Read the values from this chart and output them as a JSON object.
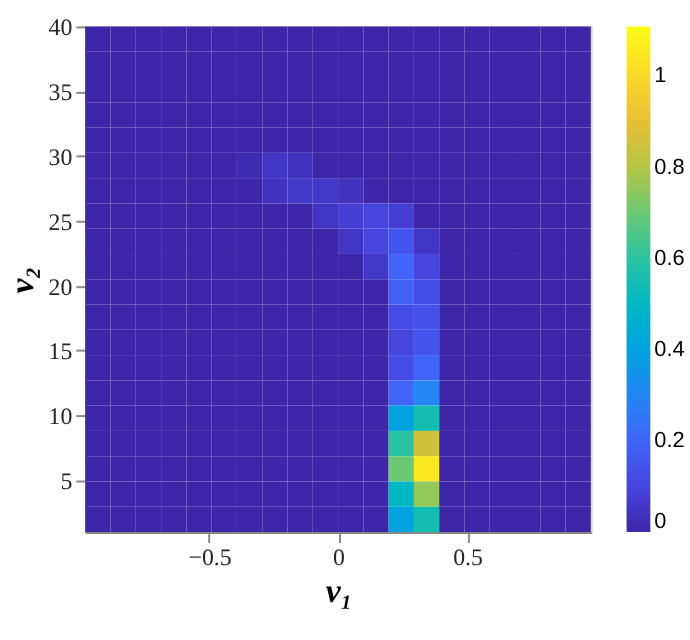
{
  "chart_data": {
    "type": "heatmap",
    "xlabel": "v₁",
    "ylabel": "v₂",
    "x": [
      -0.931,
      -0.833,
      -0.735,
      -0.637,
      -0.539,
      -0.441,
      -0.343,
      -0.245,
      -0.147,
      -0.049,
      0.049,
      0.147,
      0.245,
      0.343,
      0.441,
      0.539,
      0.637,
      0.735,
      0.833,
      0.931
    ],
    "y": [
      39.025,
      37.075,
      35.125,
      33.175,
      31.225,
      29.275,
      27.325,
      25.375,
      23.425,
      21.475,
      19.525,
      17.575,
      15.625,
      13.675,
      11.725,
      9.775,
      7.825,
      5.875,
      3.925,
      1.975
    ],
    "xlim": [
      -0.98,
      0.98
    ],
    "ylim": [
      1,
      40
    ],
    "xticks": [
      -0.5,
      0,
      0.5
    ],
    "yticks": [
      5,
      10,
      15,
      20,
      25,
      30,
      35,
      40
    ],
    "clim": [
      0,
      1.11
    ],
    "cticks": [
      0,
      0.2,
      0.4,
      0.6,
      0.8,
      1
    ],
    "cells": [
      [
        0,
        0,
        0,
        0,
        0,
        0,
        0,
        0,
        0,
        0,
        0,
        0,
        0,
        0,
        0,
        0,
        0,
        0,
        0,
        0
      ],
      [
        0,
        0,
        0,
        0,
        0,
        0,
        0,
        0,
        0,
        0,
        0,
        0,
        0,
        0,
        0,
        0,
        0,
        0,
        0,
        0
      ],
      [
        0,
        0,
        0,
        0,
        0,
        0,
        0,
        0,
        0,
        0,
        0,
        0,
        0,
        0,
        0,
        0,
        0,
        0,
        0,
        0
      ],
      [
        0,
        0,
        0,
        0,
        0,
        0,
        0,
        0,
        0,
        0,
        0,
        0,
        0,
        0,
        0,
        0,
        0,
        0,
        0,
        0
      ],
      [
        0,
        0,
        0,
        0,
        0,
        0,
        0,
        0,
        0,
        0,
        0,
        0,
        0,
        0,
        0,
        0,
        0,
        0,
        0,
        0
      ],
      [
        0,
        0,
        0,
        0,
        0,
        0,
        0.02,
        0.05,
        0.04,
        0,
        0,
        0,
        0,
        0,
        0,
        0,
        0,
        0,
        0,
        0
      ],
      [
        0,
        0,
        0,
        0,
        0,
        0,
        0,
        0.04,
        0.06,
        0.06,
        0.04,
        0,
        0,
        0,
        0,
        0,
        0,
        0,
        0,
        0
      ],
      [
        0,
        0,
        0,
        0,
        0,
        0,
        0,
        0,
        0,
        0.05,
        0.08,
        0.1,
        0.08,
        0,
        0,
        0,
        0,
        0,
        0,
        0
      ],
      [
        0,
        0,
        0,
        0,
        0,
        0,
        0,
        0,
        0,
        0,
        0.05,
        0.1,
        0.15,
        0.05,
        0,
        0,
        0,
        0,
        0,
        0
      ],
      [
        0,
        0,
        0,
        0,
        0,
        0,
        0,
        0,
        0,
        0,
        0,
        0.06,
        0.2,
        0.1,
        0,
        0,
        0,
        0,
        0,
        0
      ],
      [
        0,
        0,
        0,
        0,
        0,
        0,
        0,
        0,
        0,
        0,
        0,
        0,
        0.18,
        0.12,
        0,
        0,
        0,
        0,
        0,
        0
      ],
      [
        0,
        0,
        0,
        0,
        0,
        0,
        0,
        0,
        0,
        0,
        0,
        0,
        0.12,
        0.14,
        0,
        0,
        0,
        0,
        0,
        0
      ],
      [
        0,
        0,
        0,
        0,
        0,
        0,
        0,
        0,
        0,
        0,
        0,
        0,
        0.1,
        0.15,
        0,
        0,
        0,
        0,
        0,
        0
      ],
      [
        0,
        0,
        0,
        0,
        0,
        0,
        0,
        0,
        0,
        0,
        0,
        0,
        0.12,
        0.2,
        0,
        0,
        0,
        0,
        0,
        0
      ],
      [
        0,
        0,
        0,
        0,
        0,
        0,
        0,
        0,
        0,
        0,
        0,
        0,
        0.2,
        0.3,
        0,
        0,
        0,
        0,
        0,
        0
      ],
      [
        0,
        0,
        0,
        0,
        0,
        0,
        0,
        0,
        0,
        0,
        0,
        0,
        0.4,
        0.55,
        0,
        0,
        0,
        0,
        0,
        0
      ],
      [
        0,
        0,
        0,
        0,
        0,
        0,
        0,
        0,
        0,
        0,
        0,
        0,
        0.6,
        0.85,
        0,
        0,
        0,
        0,
        0,
        0
      ],
      [
        0,
        0,
        0,
        0,
        0,
        0,
        0,
        0,
        0,
        0,
        0,
        0,
        0.7,
        1.05,
        0,
        0,
        0,
        0,
        0,
        0
      ],
      [
        0,
        0,
        0,
        0,
        0,
        0,
        0,
        0,
        0,
        0,
        0,
        0,
        0.5,
        0.75,
        0,
        0,
        0,
        0,
        0,
        0
      ],
      [
        0,
        0,
        0,
        0,
        0,
        0,
        0,
        0,
        0,
        0,
        0,
        0,
        0.4,
        0.55,
        0,
        0,
        0,
        0,
        0,
        0
      ]
    ]
  }
}
